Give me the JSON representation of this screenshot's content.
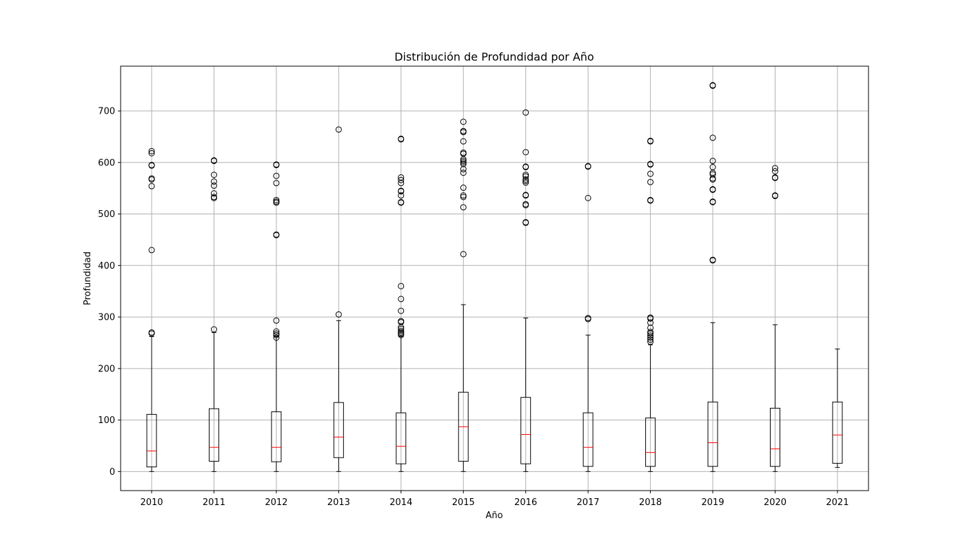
{
  "chart_data": {
    "type": "box",
    "title": "Distribución de Profundidad por Año",
    "xlabel": "Año",
    "ylabel": "Profundidad",
    "categories": [
      "2010",
      "2011",
      "2012",
      "2013",
      "2014",
      "2015",
      "2016",
      "2017",
      "2018",
      "2019",
      "2020",
      "2021"
    ],
    "ylim": [
      -37,
      787
    ],
    "yticks": [
      0,
      100,
      200,
      300,
      400,
      500,
      600,
      700
    ],
    "grid": true,
    "colors": {
      "box": "#000000",
      "median": "#ff0000",
      "grid": "#b0b0b0"
    },
    "boxes": [
      {
        "category": "2010",
        "whislo": 0,
        "q1": 9,
        "median": 40,
        "q3": 111,
        "whishi": 262,
        "fliers": [
          268,
          270,
          430,
          554,
          567,
          569,
          594,
          595,
          618,
          622
        ]
      },
      {
        "category": "2011",
        "whislo": 0,
        "q1": 20,
        "median": 47,
        "q3": 122,
        "whishi": 270,
        "fliers": [
          276,
          531,
          533,
          540,
          555,
          563,
          576,
          603,
          604
        ]
      },
      {
        "category": "2012",
        "whislo": 0,
        "q1": 19,
        "median": 47,
        "q3": 116,
        "whishi": 262,
        "fliers": [
          260,
          265,
          268,
          272,
          293,
          459,
          460,
          522,
          524,
          527,
          560,
          574,
          595,
          596
        ]
      },
      {
        "category": "2013",
        "whislo": 0,
        "q1": 27,
        "median": 67,
        "q3": 134,
        "whishi": 293,
        "fliers": [
          305,
          664
        ]
      },
      {
        "category": "2014",
        "whislo": 0,
        "q1": 15,
        "median": 49,
        "q3": 114,
        "whishi": 262,
        "fliers": [
          265,
          268,
          270,
          273,
          277,
          280,
          290,
          292,
          312,
          335,
          360,
          522,
          523,
          536,
          544,
          545,
          560,
          566,
          571,
          645,
          646
        ]
      },
      {
        "category": "2015",
        "whislo": 0,
        "q1": 20,
        "median": 87,
        "q3": 154,
        "whishi": 324,
        "fliers": [
          422,
          513,
          533,
          536,
          551,
          580,
          587,
          597,
          600,
          603,
          606,
          617,
          619,
          641,
          659,
          661,
          679
        ]
      },
      {
        "category": "2016",
        "whislo": 0,
        "q1": 15,
        "median": 72,
        "q3": 144,
        "whishi": 298,
        "fliers": [
          483,
          484,
          517,
          519,
          536,
          537,
          561,
          564,
          567,
          573,
          576,
          591,
          592,
          620,
          697
        ]
      },
      {
        "category": "2017",
        "whislo": 0,
        "q1": 10,
        "median": 47,
        "q3": 114,
        "whishi": 265,
        "fliers": [
          296,
          298,
          531,
          592,
          593
        ]
      },
      {
        "category": "2018",
        "whislo": 0,
        "q1": 10,
        "median": 37,
        "q3": 104,
        "whishi": 246,
        "fliers": [
          252,
          256,
          260,
          264,
          268,
          271,
          279,
          289,
          297,
          299,
          526,
          527,
          562,
          578,
          596,
          597,
          641,
          642
        ]
      },
      {
        "category": "2019",
        "whislo": 0,
        "q1": 10,
        "median": 56,
        "q3": 135,
        "whishi": 289,
        "fliers": [
          410,
          411,
          523,
          524,
          547,
          548,
          567,
          569,
          577,
          580,
          591,
          603,
          648,
          749,
          750
        ]
      },
      {
        "category": "2020",
        "whislo": 0,
        "q1": 10,
        "median": 44,
        "q3": 123,
        "whishi": 285,
        "fliers": [
          535,
          536,
          570,
          571,
          583,
          589
        ]
      },
      {
        "category": "2021",
        "whislo": 8,
        "q1": 16,
        "median": 71,
        "q3": 135,
        "whishi": 238,
        "fliers": []
      }
    ]
  }
}
